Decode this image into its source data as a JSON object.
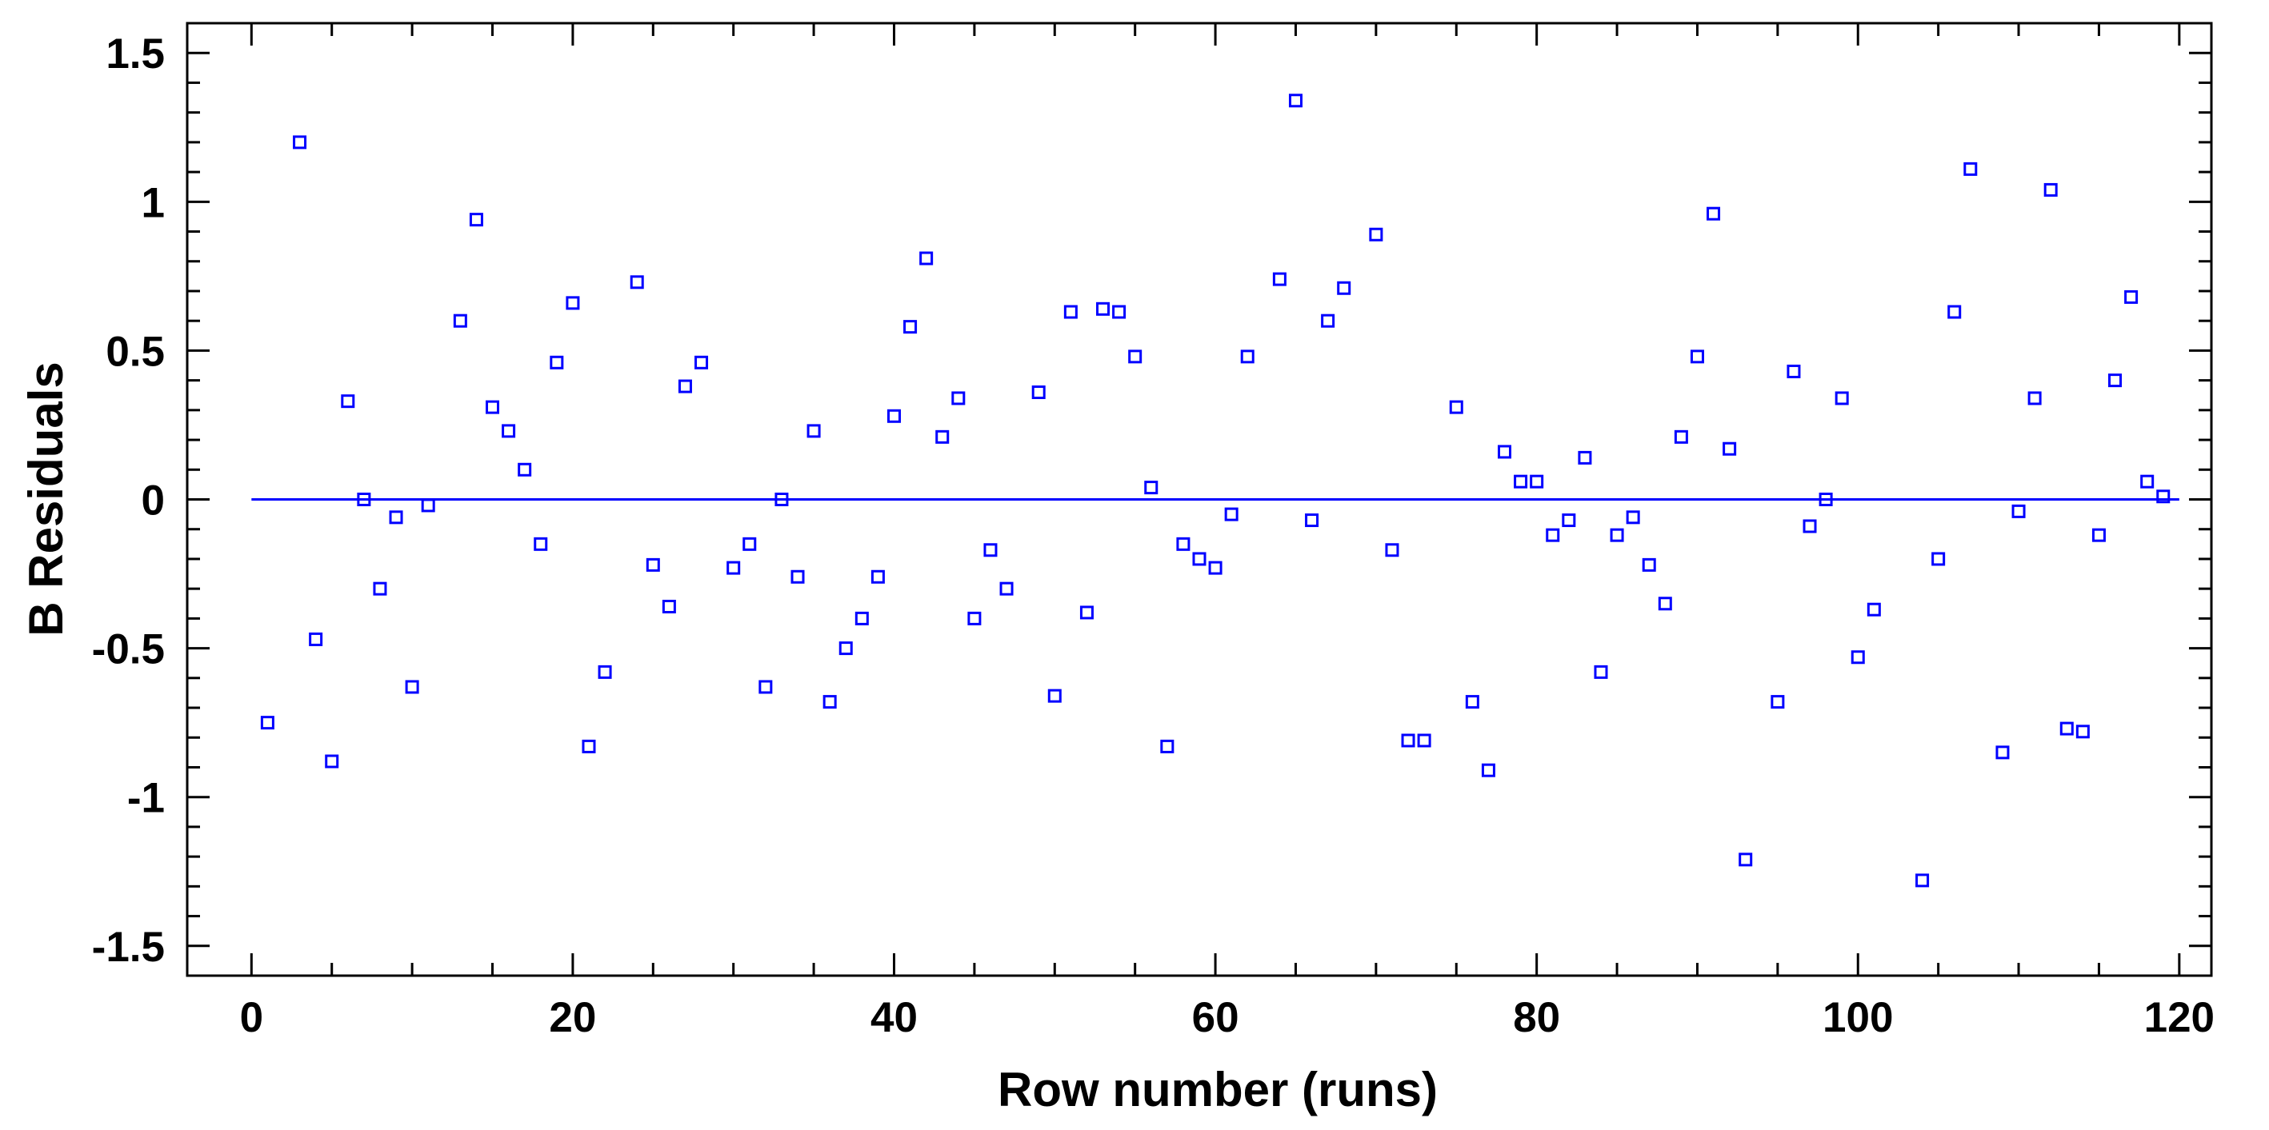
{
  "chart_data": {
    "type": "scatter",
    "xlabel": "Row number (runs)",
    "ylabel": "B Residuals",
    "xlim": [
      -4,
      122
    ],
    "ylim": [
      -1.6,
      1.6
    ],
    "x_ticks": [
      0,
      20,
      40,
      60,
      80,
      100,
      120
    ],
    "x_tick_labels": [
      "0",
      "20",
      "40",
      "60",
      "80",
      "100",
      "120"
    ],
    "y_ticks": [
      1.5,
      1,
      0.5,
      0,
      -0.5,
      -1,
      -1.5
    ],
    "y_tick_labels": [
      "1.5",
      "1",
      "0.5",
      "0",
      "-0.5",
      "-1",
      "-1.5"
    ],
    "grid": false,
    "marker_color": "#0000ff",
    "reference_line": {
      "y": 0,
      "x_start": 0,
      "x_end": 120,
      "color": "#0000ff"
    },
    "series": [
      {
        "marker": "square-open",
        "x": [
          1,
          3,
          4,
          5,
          6,
          7,
          8,
          9,
          10,
          11,
          13,
          14,
          15,
          16,
          17,
          18,
          19,
          20,
          21,
          22,
          24,
          25,
          26,
          27,
          28,
          30,
          31,
          32,
          33,
          34,
          35,
          36,
          37,
          38,
          39,
          40,
          41,
          42,
          43,
          44,
          45,
          46,
          47,
          49,
          50,
          51,
          52,
          53,
          54,
          55,
          56,
          57,
          58,
          59,
          60,
          61,
          62,
          64,
          65,
          66,
          67,
          68,
          70,
          71,
          72,
          73,
          75,
          76,
          77,
          78,
          79,
          80,
          81,
          82,
          83,
          84,
          85,
          86,
          87,
          88,
          89,
          90,
          91,
          92,
          93,
          95,
          96,
          97,
          98,
          99,
          100,
          101,
          104,
          105,
          106,
          107,
          109,
          110,
          111,
          112,
          113,
          114,
          115,
          116,
          117,
          118,
          119
        ],
        "y": [
          -0.75,
          1.2,
          -0.47,
          -0.88,
          0.33,
          0.0,
          -0.3,
          -0.06,
          -0.63,
          -0.02,
          0.6,
          0.94,
          0.31,
          0.23,
          0.1,
          -0.15,
          0.46,
          0.66,
          -0.83,
          -0.58,
          0.73,
          -0.22,
          -0.36,
          0.38,
          0.46,
          -0.23,
          -0.15,
          -0.63,
          0.0,
          -0.26,
          0.23,
          -0.68,
          -0.5,
          -0.4,
          -0.26,
          0.28,
          0.58,
          0.81,
          0.21,
          0.34,
          -0.4,
          -0.17,
          -0.3,
          0.36,
          -0.66,
          0.63,
          -0.38,
          0.64,
          0.63,
          0.48,
          0.04,
          -0.83,
          -0.15,
          -0.2,
          -0.23,
          -0.05,
          0.48,
          0.74,
          1.34,
          -0.07,
          0.6,
          0.71,
          0.89,
          -0.17,
          -0.81,
          -0.81,
          0.31,
          -0.68,
          -0.91,
          0.16,
          0.06,
          0.06,
          -0.12,
          -0.07,
          0.14,
          -0.58,
          -0.12,
          -0.06,
          -0.22,
          -0.35,
          0.21,
          0.48,
          0.96,
          0.17,
          -1.21,
          -0.68,
          0.43,
          -0.09,
          0.0,
          0.34,
          -0.53,
          -0.37,
          -1.28,
          -0.2,
          0.63,
          1.11,
          -0.85,
          -0.04,
          0.34,
          1.04,
          -0.77,
          -0.78,
          -0.12,
          0.4,
          0.68,
          0.06,
          0.01
        ]
      }
    ]
  }
}
